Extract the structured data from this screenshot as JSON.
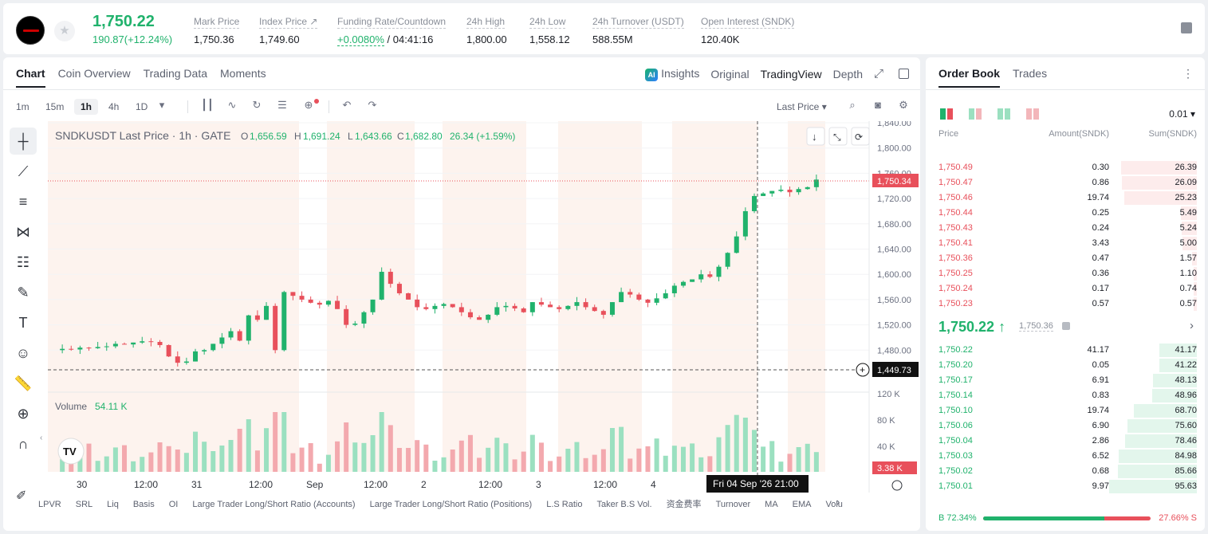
{
  "ticker": {
    "price": "1,750.22",
    "change": "190.87(+12.24%)",
    "stats": [
      {
        "label": "Mark Price",
        "value": "1,750.36"
      },
      {
        "label": "Index Price ↗",
        "value": "1,749.60"
      },
      {
        "label": "Funding Rate/Countdown",
        "value_g": "+0.0080%",
        "value": " / 04:41:16"
      },
      {
        "label": "24h High",
        "value": "1,800.00"
      },
      {
        "label": "24h Low",
        "value": "1,558.12"
      },
      {
        "label": "24h Turnover (USDT)",
        "value": "588.55M"
      },
      {
        "label": "Open Interest (SNDK)",
        "value": "120.40K"
      }
    ]
  },
  "chart": {
    "tabs": [
      "Chart",
      "Coin Overview",
      "Trading Data",
      "Moments"
    ],
    "views": {
      "insights": "Insights",
      "original": "Original",
      "tradingview": "TradingView",
      "depth": "Depth"
    },
    "timeframes": [
      "1m",
      "15m",
      "1h",
      "4h",
      "1D"
    ],
    "price_type": "Last Price ▾",
    "legend": {
      "symbol": "SNDKUSDT Last Price · 1h · GATE",
      "o": "1,656.59",
      "h": "1,691.24",
      "l": "1,643.66",
      "c": "1,682.80",
      "chg": "26.34 (+1.59%)"
    },
    "volume_label": "Volume",
    "volume_value": "54.11 K",
    "y_ticks": [
      "1,840.00",
      "1,800.00",
      "1,760.00",
      "1,720.00",
      "1,680.00",
      "1,640.00",
      "1,600.00",
      "1,560.00",
      "1,520.00",
      "1,480.00"
    ],
    "vol_ticks": [
      "120 K",
      "80 K",
      "40 K"
    ],
    "x_ticks": [
      "30",
      "12:00",
      "31",
      "12:00",
      "Sep",
      "12:00",
      "2",
      "12:00",
      "3",
      "12:00",
      "4",
      "12:00"
    ],
    "last_price_tag": "1,750.34",
    "crosshair_tag": "1,449.73",
    "vol_tag": "3.38 K",
    "crosshair_time": "Fri 04 Sep '26   21:00",
    "indicators": [
      "LPVR",
      "SRL",
      "Liq",
      "Basis",
      "OI",
      "Large Trader Long/Short Ratio (Accounts)",
      "Large Trader Long/Short Ratio (Positions)",
      "L.S Ratio",
      "Taker B.S Vol.",
      "资金费率",
      "Turnover",
      "MA",
      "EMA",
      "Volu"
    ]
  },
  "chart_data": {
    "type": "candlestick",
    "ylim": [
      1440,
      1840
    ],
    "volume_ylim": [
      0,
      130000
    ]
  },
  "orderbook": {
    "tabs": [
      "Order Book",
      "Trades"
    ],
    "precision": "0.01 ▾",
    "headers": {
      "price": "Price",
      "amount": "Amount(SNDK)",
      "sum": "Sum(SNDK)"
    },
    "asks": [
      [
        "1,750.49",
        "0.30",
        "26.39"
      ],
      [
        "1,750.47",
        "0.86",
        "26.09"
      ],
      [
        "1,750.46",
        "19.74",
        "25.23"
      ],
      [
        "1,750.44",
        "0.25",
        "5.49"
      ],
      [
        "1,750.43",
        "0.24",
        "5.24"
      ],
      [
        "1,750.41",
        "3.43",
        "5.00"
      ],
      [
        "1,750.36",
        "0.47",
        "1.57"
      ],
      [
        "1,750.25",
        "0.36",
        "1.10"
      ],
      [
        "1,750.24",
        "0.17",
        "0.74"
      ],
      [
        "1,750.23",
        "0.57",
        "0.57"
      ]
    ],
    "mid": "1,750.22 ↑",
    "mark": "1,750.36",
    "bids": [
      [
        "1,750.22",
        "41.17",
        "41.17"
      ],
      [
        "1,750.20",
        "0.05",
        "41.22"
      ],
      [
        "1,750.17",
        "6.91",
        "48.13"
      ],
      [
        "1,750.14",
        "0.83",
        "48.96"
      ],
      [
        "1,750.10",
        "19.74",
        "68.70"
      ],
      [
        "1,750.06",
        "6.90",
        "75.60"
      ],
      [
        "1,750.04",
        "2.86",
        "78.46"
      ],
      [
        "1,750.03",
        "6.52",
        "84.98"
      ],
      [
        "1,750.02",
        "0.68",
        "85.66"
      ],
      [
        "1,750.01",
        "9.97",
        "95.63"
      ]
    ],
    "buy_ratio": "B 72.34%",
    "sell_ratio": "27.66% S",
    "buy_fraction": 0.7234,
    "colors": {
      "up": "#20b26c",
      "down": "#e8505b"
    }
  }
}
